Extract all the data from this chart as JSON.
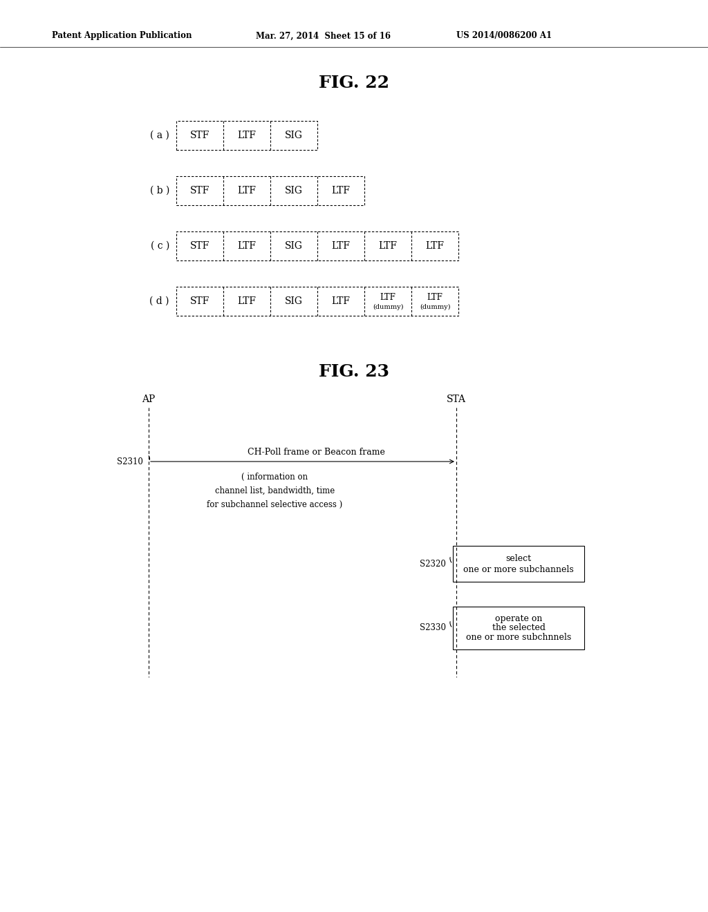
{
  "background_color": "#ffffff",
  "header_text": "Patent Application Publication",
  "header_date": "Mar. 27, 2014  Sheet 15 of 16",
  "header_patent": "US 2014/0086200 A1",
  "fig22_title": "FIG. 22",
  "fig23_title": "FIG. 23",
  "fig22_rows": [
    {
      "label": "( a )",
      "cells": [
        "STF",
        "LTF",
        "SIG"
      ]
    },
    {
      "label": "( b )",
      "cells": [
        "STF",
        "LTF",
        "SIG",
        "LTF"
      ]
    },
    {
      "label": "( c )",
      "cells": [
        "STF",
        "LTF",
        "SIG",
        "LTF",
        "LTF",
        "LTF"
      ]
    },
    {
      "label": "( d )",
      "cells": [
        "STF",
        "LTF",
        "SIG",
        "LTF",
        "LTF\n(dummy)",
        "LTF\n(dummy)"
      ]
    }
  ],
  "ap_label": "AP",
  "sta_label": "STA",
  "s2310_label": "S2310",
  "s2320_label": "S2320",
  "s2330_label": "S2330",
  "arrow_label_line1": "CH-Poll frame or Beacon frame",
  "arrow_label_line2": "( information on",
  "arrow_label_line3": "channel list, bandwidth, time",
  "arrow_label_line4": "for subchannel selective access )",
  "box2320_line1": "select",
  "box2320_line2": "one or more subchannels",
  "box2330_line1": "operate on",
  "box2330_line2": "the selected",
  "box2330_line3": "one or more subchnnels"
}
